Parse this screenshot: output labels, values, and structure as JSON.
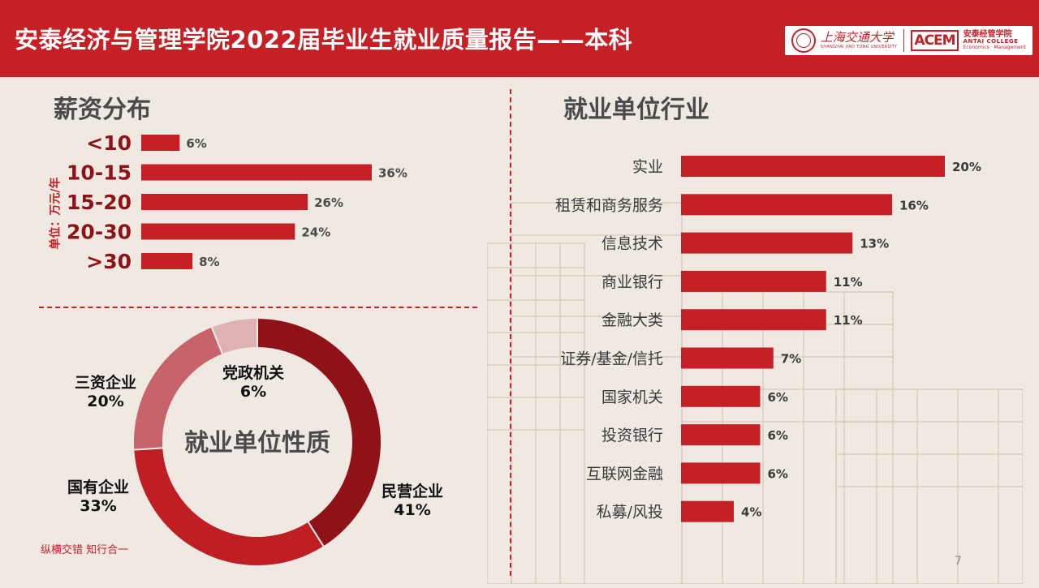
{
  "header": {
    "title": "安泰经济与管理学院2022届毕业生就业质量报告——本科",
    "logo_sjtu_cn": "上海交通大学",
    "logo_sjtu_en": "SHANGHAI JIAO TONG UNIVERSITY",
    "logo_acem": "ACEM",
    "logo_antai_cn": "安泰经管学院",
    "logo_antai_en1": "ANTAI COLLEGE",
    "logo_antai_en2": "Economics · Management"
  },
  "colors": {
    "accent": "#c52026",
    "dark_red": "#8e1218",
    "mid_red": "#be1e24",
    "rose": "#c7636a",
    "pink": "#dfb1b3",
    "background": "#efe9e1"
  },
  "footer": {
    "slogan": "纵横交错 知行合一",
    "page_number": "7"
  },
  "chart_data": [
    {
      "type": "bar",
      "orientation": "horizontal",
      "title": "薪资分布",
      "ylabel": "单位：万元/年",
      "categories": [
        "<10",
        "10-15",
        "15-20",
        "20-30",
        ">30"
      ],
      "values": [
        6,
        36,
        26,
        24,
        8
      ],
      "value_labels": [
        "6%",
        "36%",
        "26%",
        "24%",
        "8%"
      ],
      "unit": "%"
    },
    {
      "type": "pie",
      "style": "donut",
      "title": "就业单位性质",
      "slices": [
        {
          "label": "民营企业",
          "value": 41,
          "value_label": "41%"
        },
        {
          "label": "国有企业",
          "value": 33,
          "value_label": "33%"
        },
        {
          "label": "三资企业",
          "value": 20,
          "value_label": "20%"
        },
        {
          "label": "党政机关",
          "value": 6,
          "value_label": "6%"
        }
      ]
    },
    {
      "type": "bar",
      "orientation": "horizontal",
      "title": "就业单位行业",
      "categories": [
        "实业",
        "租赁和商务服务",
        "信息技术",
        "商业银行",
        "金融大类",
        "证券/基金/信托",
        "国家机关",
        "投资银行",
        "互联网金融",
        "私募/风投"
      ],
      "values": [
        20,
        16,
        13,
        11,
        11,
        7,
        6,
        6,
        6,
        4
      ],
      "value_labels": [
        "20%",
        "16%",
        "13%",
        "11%",
        "11%",
        "7%",
        "6%",
        "6%",
        "6%",
        "4%"
      ],
      "unit": "%"
    }
  ]
}
